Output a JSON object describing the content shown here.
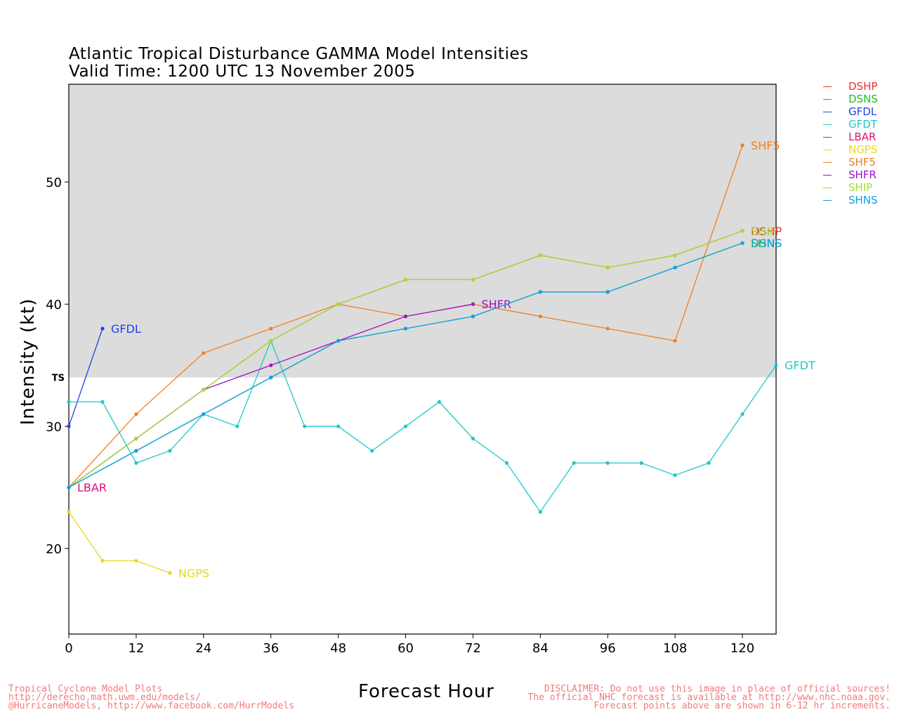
{
  "title": "Atlantic Tropical Disturbance GAMMA Model Intensities",
  "subtitle": "Valid Time: 1200 UTC 13 November 2005",
  "footer_left": [
    "Tropical Cyclone Model Plots",
    "http://derecho.math.uwm.edu/models/",
    "@HurricaneModels, http://www.facebook.com/HurrModels"
  ],
  "footer_right": [
    "DISCLAIMER: Do not use this image in place of official sources!",
    "The official NHC forecast is available at http://www.nhc.noaa.gov.",
    "Forecast points above are shown in 6-12 hr increments."
  ],
  "chart_data": {
    "type": "line",
    "title": "Atlantic Tropical Disturbance GAMMA Model Intensities",
    "subtitle": "Valid Time: 1200 UTC 13 November 2005",
    "xlabel": "Forecast Hour",
    "ylabel": "Intensity (kt)",
    "xlim": [
      0,
      126
    ],
    "ylim": [
      13,
      58
    ],
    "xticks": [
      0,
      12,
      24,
      36,
      48,
      60,
      72,
      84,
      96,
      108,
      120
    ],
    "yticks": [
      20,
      30,
      40,
      50
    ],
    "ts_threshold": 34,
    "ts_label": "TS",
    "shading_color": "#dcdcdc",
    "legend_position": "right",
    "series": [
      {
        "name": "DSHP",
        "color": "#f03030",
        "x": [
          0,
          12,
          24,
          36,
          48,
          60,
          72,
          84,
          96,
          108,
          120
        ],
        "y": [
          25,
          29,
          33,
          37,
          40,
          42,
          42,
          44,
          43,
          44,
          46
        ],
        "label": "DSHP"
      },
      {
        "name": "DSNS",
        "color": "#20c020",
        "x": [
          0,
          12,
          24,
          36,
          48,
          60,
          72,
          84,
          96,
          108,
          120
        ],
        "y": [
          25,
          28,
          31,
          34,
          37,
          38,
          39,
          41,
          41,
          43,
          45
        ],
        "label": "DSNS"
      },
      {
        "name": "GFDL",
        "color": "#2040e0",
        "x": [
          0,
          6
        ],
        "y": [
          30,
          38
        ],
        "label": "GFDL"
      },
      {
        "name": "GFDT",
        "color": "#20c8c8",
        "x": [
          0,
          6,
          12,
          18,
          24,
          30,
          36,
          42,
          48,
          54,
          60,
          66,
          72,
          78,
          84,
          90,
          96,
          102,
          108,
          114,
          120,
          126
        ],
        "y": [
          32,
          32,
          27,
          28,
          31,
          30,
          37,
          30,
          30,
          28,
          30,
          32,
          29,
          27,
          23,
          27,
          27,
          27,
          26,
          27,
          31,
          35
        ],
        "label": "GFDT"
      },
      {
        "name": "LBAR",
        "color": "#e0107a",
        "x": [
          0
        ],
        "y": [
          25
        ],
        "label": "LBAR"
      },
      {
        "name": "NGPS",
        "color": "#e8d820",
        "x": [
          0,
          6,
          12,
          18
        ],
        "y": [
          23,
          19,
          19,
          18
        ],
        "label": "NGPS"
      },
      {
        "name": "SHF5",
        "color": "#f08020",
        "x": [
          0,
          12,
          24,
          36,
          48,
          60,
          72,
          84,
          96,
          108,
          120
        ],
        "y": [
          25,
          31,
          36,
          38,
          40,
          39,
          40,
          39,
          38,
          37,
          53
        ],
        "label": "SHF5"
      },
      {
        "name": "SHFR",
        "color": "#a010c8",
        "x": [
          0,
          12,
          24,
          36,
          48,
          60,
          72
        ],
        "y": [
          25,
          29,
          33,
          35,
          37,
          39,
          40
        ],
        "label": "SHFR"
      },
      {
        "name": "SHIP",
        "color": "#a0e030",
        "x": [
          0,
          12,
          24,
          36,
          48,
          60,
          72,
          84,
          96,
          108,
          120
        ],
        "y": [
          25,
          29,
          33,
          37,
          40,
          42,
          42,
          44,
          43,
          44,
          46
        ],
        "label": "SHIP"
      },
      {
        "name": "SHNS",
        "color": "#10a0e8",
        "x": [
          0,
          12,
          24,
          36,
          48,
          60,
          72,
          84,
          96,
          108,
          120
        ],
        "y": [
          25,
          28,
          31,
          34,
          37,
          38,
          39,
          41,
          41,
          43,
          45
        ],
        "label": "SHNS"
      }
    ]
  }
}
